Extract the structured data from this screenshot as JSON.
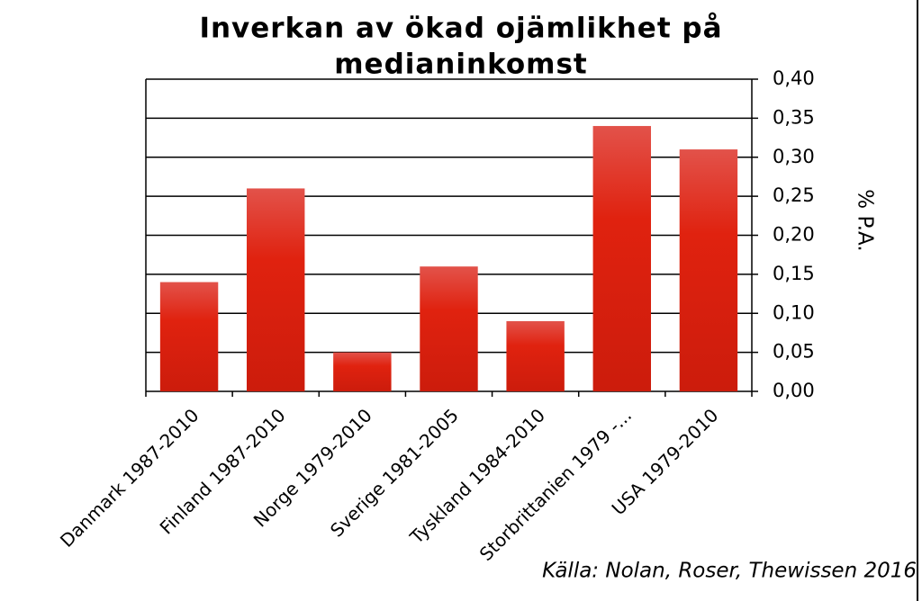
{
  "chart_data": {
    "type": "bar",
    "title": [
      "Inverkan av ökad ojämlikhet på",
      "medianinkomst"
    ],
    "y_label": "% P.A.",
    "source": "Källa: Nolan, Roser, Thewissen 2016",
    "categories": [
      "Danmark 1987-2010",
      "Finland 1987-2010",
      "Norge 1979-2010",
      "Sverige 1981-2005",
      "Tyskland 1984-2010",
      "Storbrittanien 1979 -...",
      "USA 1979-2010"
    ],
    "values": [
      0.14,
      0.26,
      0.05,
      0.16,
      0.09,
      0.34,
      0.31
    ],
    "color": "#e0220f",
    "ylim": [
      0,
      0.4
    ],
    "yticks": [
      {
        "value": 0,
        "label": "0,00"
      },
      {
        "value": 0.05,
        "label": "0,05"
      },
      {
        "value": 0.1,
        "label": "0,10"
      },
      {
        "value": 0.15,
        "label": "0,15"
      },
      {
        "value": 0.2,
        "label": "0,20"
      },
      {
        "value": 0.25,
        "label": "0,25"
      },
      {
        "value": 0.3,
        "label": "0,30"
      },
      {
        "value": 0.35,
        "label": "0,35"
      },
      {
        "value": 0.4,
        "label": "0,40"
      }
    ],
    "grid": true,
    "y_axis_side": "right"
  }
}
